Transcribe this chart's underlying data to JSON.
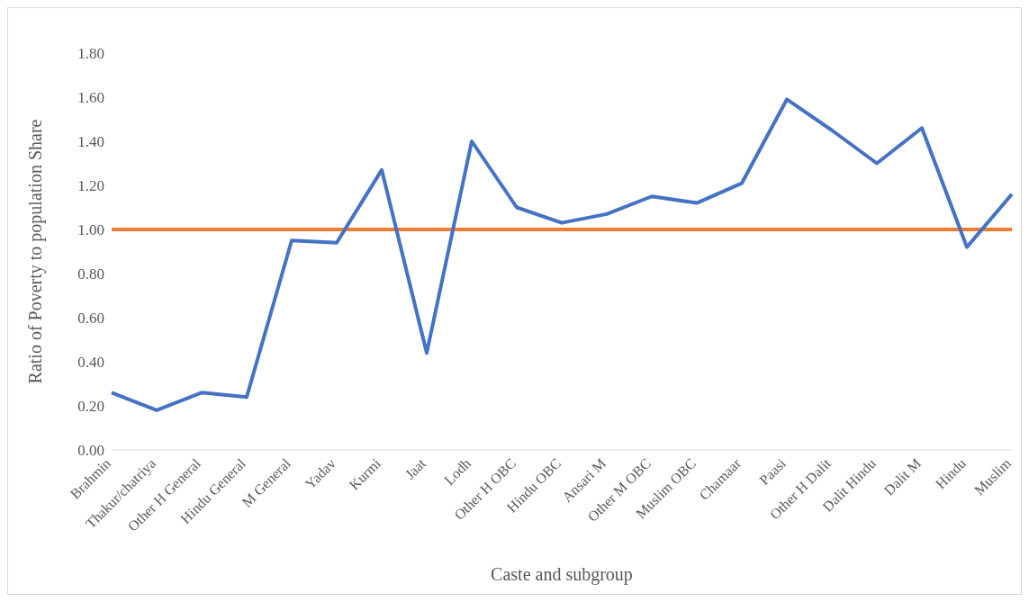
{
  "chart_data": {
    "type": "line",
    "xlabel": "Caste and  subgroup",
    "ylabel": "Ratio of Poverty to population Share",
    "categories": [
      "Brahmin",
      "Thakur/chatriya",
      "Other H General",
      "Hindu General",
      "M General",
      "Yadav",
      "Kurmi",
      "Jaat",
      "Lodh",
      "Other H OBC",
      "Hindu OBC",
      "Ansari M",
      "Other M OBC",
      "Muslim OBC",
      "Chamaar",
      "Paasi",
      "Other H Dalit",
      "Dalit Hindu",
      "Dalit M",
      "Hindu",
      "Muslim"
    ],
    "series": [
      {
        "color": "#4472c4",
        "values": [
          0.26,
          0.18,
          0.26,
          0.24,
          0.95,
          0.94,
          1.27,
          0.44,
          1.4,
          1.1,
          1.03,
          1.07,
          1.15,
          1.12,
          1.21,
          1.59,
          1.45,
          1.3,
          1.46,
          0.92,
          1.16
        ]
      }
    ],
    "ref_lines": [
      {
        "axis": "y",
        "value": 1.0,
        "color": "#ed7d31"
      }
    ],
    "ylim": [
      0,
      1.8
    ],
    "yticks": [
      {
        "value": 0,
        "label": "0.00"
      },
      {
        "value": 0.2,
        "label": "0.20"
      },
      {
        "value": 0.4,
        "label": "0.40"
      },
      {
        "value": 0.6,
        "label": "0.60"
      },
      {
        "value": 0.8,
        "label": "0.80"
      },
      {
        "value": 1.0,
        "label": "1.00"
      },
      {
        "value": 1.2,
        "label": "1.20"
      },
      {
        "value": 1.4,
        "label": "1.40"
      },
      {
        "value": 1.6,
        "label": "1.60"
      },
      {
        "value": 1.8,
        "label": "1.80"
      }
    ],
    "grid": false,
    "legend": false,
    "marker": "none",
    "line_style": "solid"
  }
}
